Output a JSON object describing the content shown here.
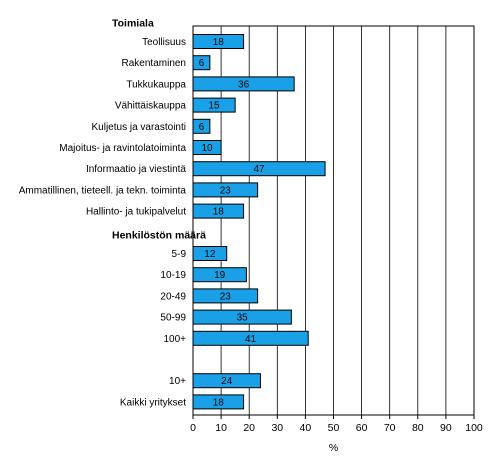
{
  "chart_data": {
    "type": "bar",
    "orientation": "horizontal",
    "xlabel": "%",
    "xlim": [
      0,
      100
    ],
    "xticks": [
      "0",
      "10",
      "20",
      "30",
      "40",
      "50",
      "60",
      "70",
      "80",
      "90",
      "100"
    ],
    "grid": "vertical",
    "bar_color": "#1aa0e6",
    "groups": [
      {
        "title": "Toimiala",
        "categories": [
          "Teollisuus",
          "Rakentaminen",
          "Tukkukauppa",
          "Vähittäiskauppa",
          "Kuljetus ja varastointi",
          "Majoitus- ja ravintolatoiminta",
          "Informaatio ja viestintä",
          "Ammatillinen, tieteell. ja tekn. toiminta",
          "Hallinto- ja tukipalvelut"
        ],
        "values": [
          18,
          6,
          36,
          15,
          6,
          10,
          47,
          23,
          18
        ]
      },
      {
        "title": "Henkilöstön määrä",
        "categories": [
          "5-9",
          "10-19",
          "20-49",
          "50-99",
          "100+"
        ],
        "values": [
          12,
          19,
          23,
          35,
          41
        ]
      },
      {
        "title": "",
        "categories": [
          "10+",
          "Kaikki yritykset"
        ],
        "values": [
          24,
          18
        ]
      }
    ]
  }
}
